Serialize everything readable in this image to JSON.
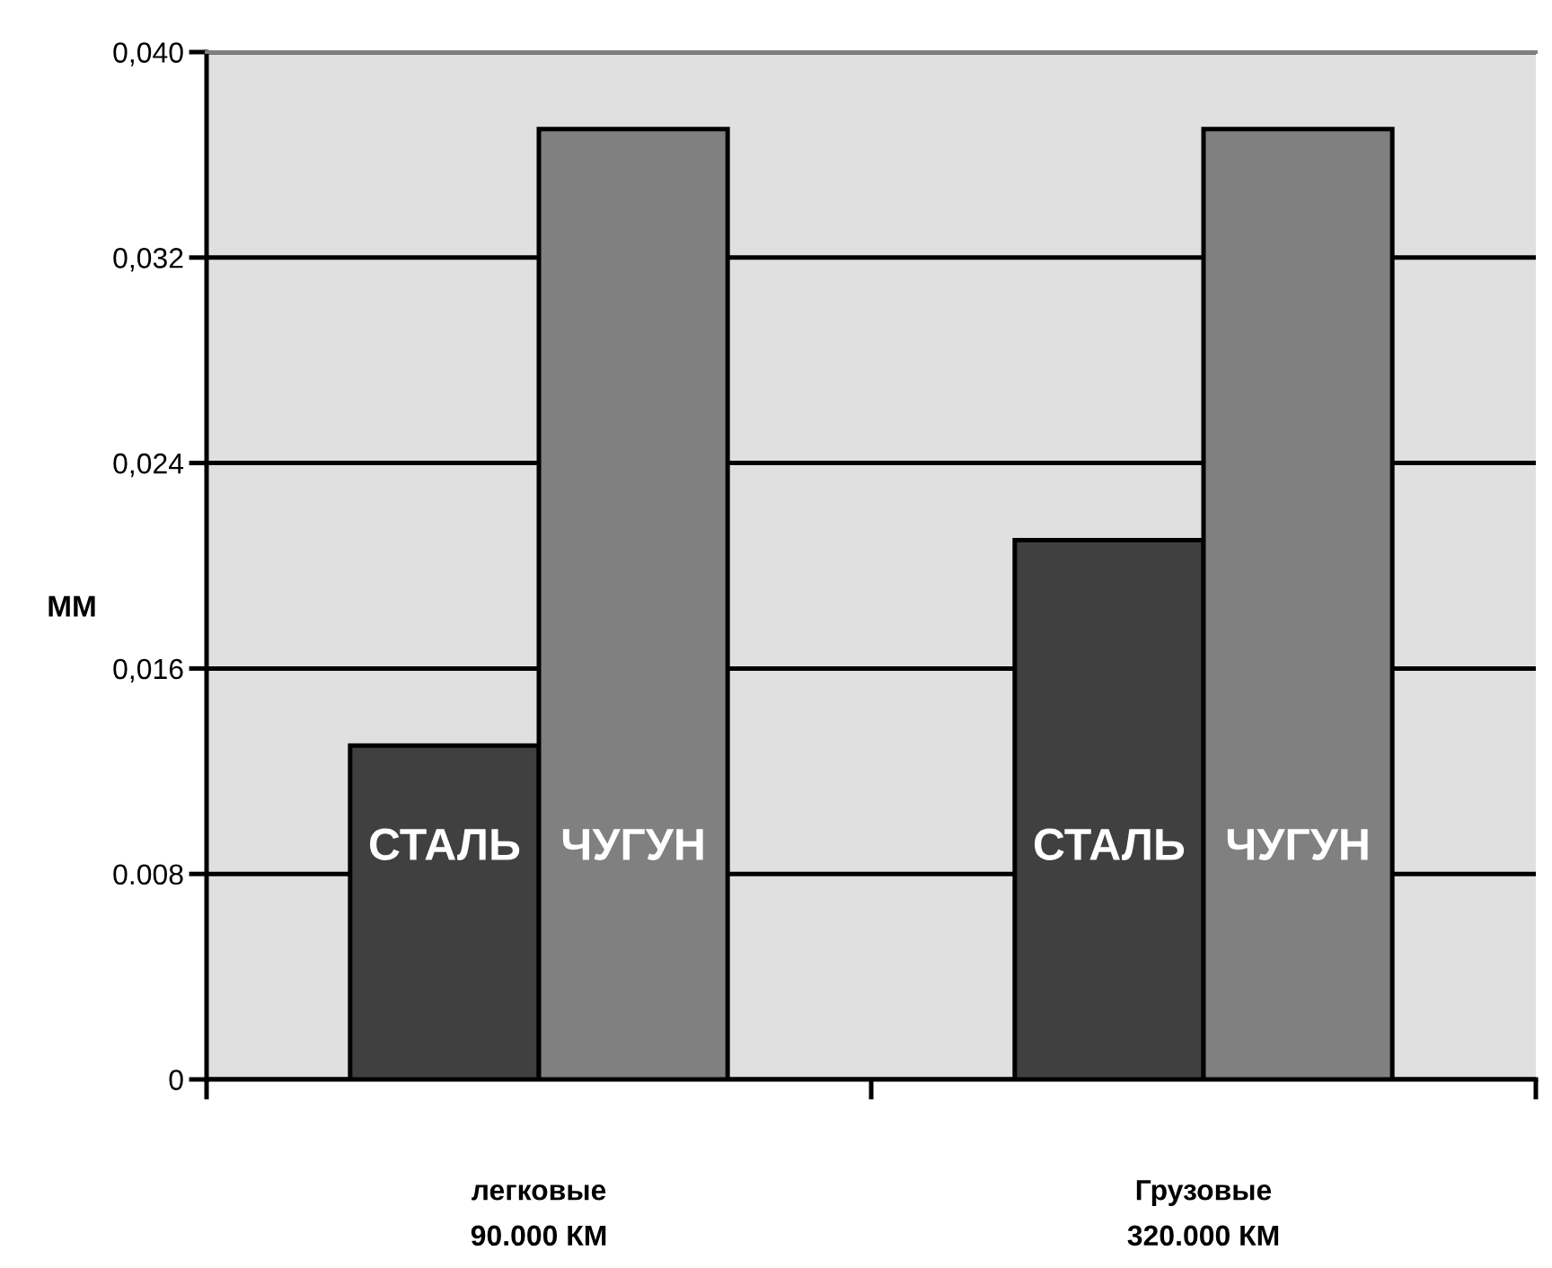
{
  "chart_data": {
    "type": "bar",
    "categories": [
      "легковые\n90.000 КМ",
      "Грузовые\n320.000 КМ"
    ],
    "series": [
      {
        "name": "СТАЛЬ",
        "color": "#404040",
        "values": [
          0.013,
          0.021
        ]
      },
      {
        "name": "ЧУГУН",
        "color": "#808080",
        "values": [
          0.037,
          0.037
        ]
      }
    ],
    "ylabel": "ММ",
    "ylim": [
      0,
      0.04
    ],
    "yticks": [
      0,
      0.008,
      {
        "value": 0.016,
        "label": "0,016"
      },
      {
        "value": 0.024,
        "label": "0,024"
      },
      {
        "value": 0.032,
        "label": "0,032"
      },
      {
        "value": 0.04,
        "label": "0,040"
      }
    ],
    "grid": "y"
  }
}
